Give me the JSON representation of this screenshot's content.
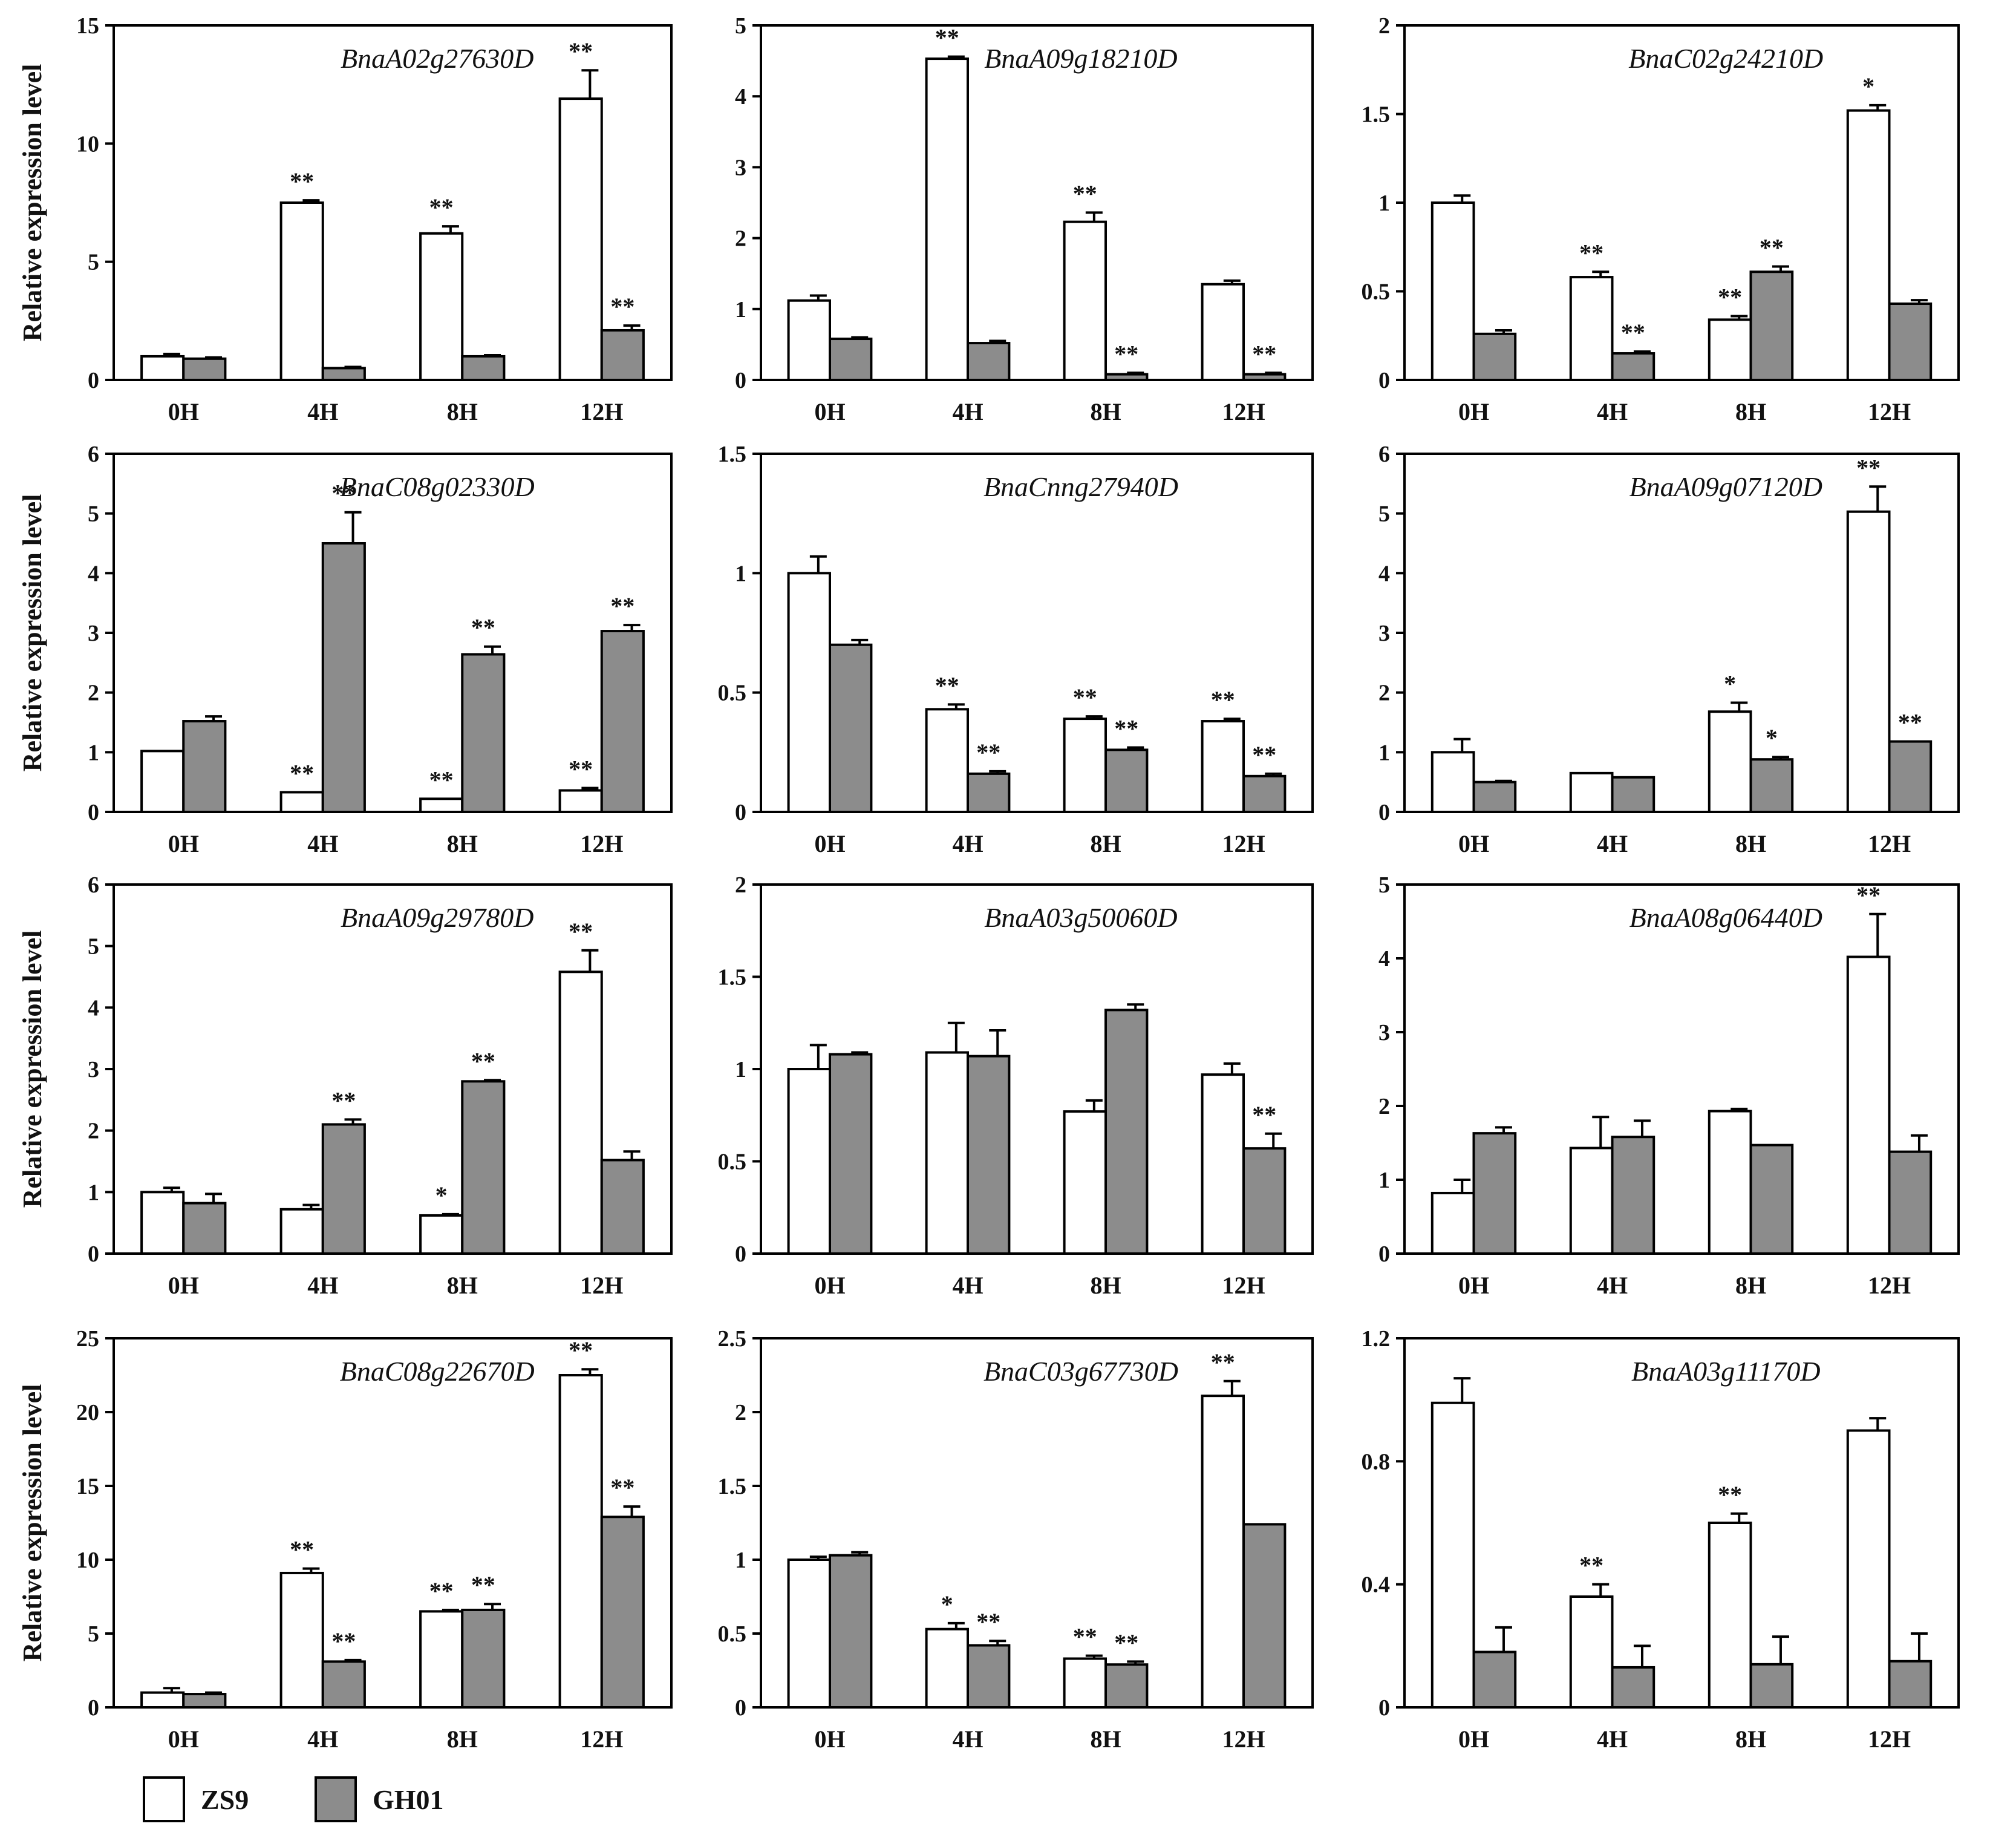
{
  "figure": {
    "ylabel": "Relative expression level",
    "legend": [
      {
        "name": "ZS9",
        "color": "#ffffff"
      },
      {
        "name": "GH01",
        "color": "#8c8c8c"
      }
    ]
  },
  "chart_data": [
    {
      "type": "bar",
      "title": "BnaA02g27630D",
      "ylabel": "Relative expression level",
      "categories": [
        "0H",
        "4H",
        "8H",
        "12H"
      ],
      "ylim": [
        0,
        15
      ],
      "yticks": [
        "0",
        "5",
        "10",
        "15"
      ],
      "series": [
        {
          "name": "ZS9",
          "values": [
            1.0,
            7.5,
            6.2,
            11.9
          ],
          "errors": [
            0.1,
            0.1,
            0.3,
            1.2
          ],
          "sig": [
            "",
            "**",
            "**",
            "**"
          ]
        },
        {
          "name": "GH01",
          "values": [
            0.9,
            0.5,
            1.0,
            2.1
          ],
          "errors": [
            0.05,
            0.05,
            0.05,
            0.2
          ],
          "sig": [
            "",
            "",
            "",
            "**"
          ]
        }
      ]
    },
    {
      "type": "bar",
      "title": "BnaA09g18210D",
      "ylabel": "",
      "categories": [
        "0H",
        "4H",
        "8H",
        "12H"
      ],
      "ylim": [
        0,
        5
      ],
      "yticks": [
        "0",
        "1",
        "2",
        "3",
        "4",
        "5"
      ],
      "series": [
        {
          "name": "ZS9",
          "values": [
            1.12,
            4.53,
            2.23,
            1.35
          ],
          "errors": [
            0.07,
            0.03,
            0.13,
            0.05
          ],
          "sig": [
            "",
            "**",
            "**",
            ""
          ]
        },
        {
          "name": "GH01",
          "values": [
            0.58,
            0.52,
            0.08,
            0.08
          ],
          "errors": [
            0.02,
            0.03,
            0.02,
            0.02
          ],
          "sig": [
            "",
            "",
            "**",
            "**"
          ]
        }
      ]
    },
    {
      "type": "bar",
      "title": "BnaC02g24210D",
      "ylabel": "",
      "categories": [
        "0H",
        "4H",
        "8H",
        "12H"
      ],
      "ylim": [
        0,
        2
      ],
      "yticks": [
        "0",
        "0.5",
        "1",
        "1.5",
        "2"
      ],
      "series": [
        {
          "name": "ZS9",
          "values": [
            1.0,
            0.58,
            0.34,
            1.52
          ],
          "errors": [
            0.04,
            0.03,
            0.02,
            0.03
          ],
          "sig": [
            "",
            "**",
            "**",
            "*"
          ]
        },
        {
          "name": "GH01",
          "values": [
            0.26,
            0.15,
            0.61,
            0.43
          ],
          "errors": [
            0.02,
            0.01,
            0.03,
            0.02
          ],
          "sig": [
            "",
            "**",
            "**",
            ""
          ]
        }
      ]
    },
    {
      "type": "bar",
      "title": "BnaC08g02330D",
      "ylabel": "Relative expression level",
      "categories": [
        "0H",
        "4H",
        "8H",
        "12H"
      ],
      "ylim": [
        0,
        6
      ],
      "yticks": [
        "0",
        "1",
        "2",
        "3",
        "4",
        "5",
        "6"
      ],
      "series": [
        {
          "name": "ZS9",
          "values": [
            1.02,
            0.33,
            0.22,
            0.36
          ],
          "errors": [
            0.0,
            0.0,
            0.0,
            0.04
          ],
          "sig": [
            "",
            "**",
            "**",
            "**"
          ]
        },
        {
          "name": "GH01",
          "values": [
            1.52,
            4.5,
            2.64,
            3.03
          ],
          "errors": [
            0.08,
            0.52,
            0.13,
            0.1
          ],
          "sig": [
            "",
            "**",
            "**",
            "**"
          ]
        }
      ]
    },
    {
      "type": "bar",
      "title": "BnaCnng27940D",
      "ylabel": "",
      "categories": [
        "0H",
        "4H",
        "8H",
        "12H"
      ],
      "ylim": [
        0,
        1.5
      ],
      "yticks": [
        "0",
        "0.5",
        "1",
        "1.5"
      ],
      "series": [
        {
          "name": "ZS9",
          "values": [
            1.0,
            0.43,
            0.39,
            0.38
          ],
          "errors": [
            0.07,
            0.02,
            0.01,
            0.01
          ],
          "sig": [
            "",
            "**",
            "**",
            "**"
          ]
        },
        {
          "name": "GH01",
          "values": [
            0.7,
            0.16,
            0.26,
            0.15
          ],
          "errors": [
            0.02,
            0.01,
            0.01,
            0.01
          ],
          "sig": [
            "",
            "**",
            "**",
            "**"
          ]
        }
      ]
    },
    {
      "type": "bar",
      "title": "BnaA09g07120D",
      "ylabel": "",
      "categories": [
        "0H",
        "4H",
        "8H",
        "12H"
      ],
      "ylim": [
        0,
        6
      ],
      "yticks": [
        "0",
        "1",
        "2",
        "3",
        "4",
        "5",
        "6"
      ],
      "series": [
        {
          "name": "ZS9",
          "values": [
            1.0,
            0.65,
            1.68,
            5.03
          ],
          "errors": [
            0.22,
            0.0,
            0.15,
            0.42
          ],
          "sig": [
            "",
            "",
            "*",
            "**"
          ]
        },
        {
          "name": "GH01",
          "values": [
            0.5,
            0.58,
            0.88,
            1.18
          ],
          "errors": [
            0.02,
            0.0,
            0.04,
            0.0
          ],
          "sig": [
            "",
            "",
            "*",
            "**"
          ]
        }
      ]
    },
    {
      "type": "bar",
      "title": "BnaA09g29780D",
      "ylabel": "Relative expression level",
      "categories": [
        "0H",
        "4H",
        "8H",
        "12H"
      ],
      "ylim": [
        0,
        6
      ],
      "yticks": [
        "0",
        "1",
        "2",
        "3",
        "4",
        "5",
        "6"
      ],
      "series": [
        {
          "name": "ZS9",
          "values": [
            1.0,
            0.72,
            0.62,
            4.58
          ],
          "errors": [
            0.07,
            0.07,
            0.02,
            0.35
          ],
          "sig": [
            "",
            "",
            "*",
            "**"
          ]
        },
        {
          "name": "GH01",
          "values": [
            0.82,
            2.1,
            2.8,
            1.52
          ],
          "errors": [
            0.15,
            0.08,
            0.02,
            0.14
          ],
          "sig": [
            "",
            "**",
            "**",
            ""
          ]
        }
      ]
    },
    {
      "type": "bar",
      "title": "BnaA03g50060D",
      "ylabel": "",
      "categories": [
        "0H",
        "4H",
        "8H",
        "12H"
      ],
      "ylim": [
        0,
        2
      ],
      "yticks": [
        "0",
        "0.5",
        "1",
        "1.5",
        "2"
      ],
      "series": [
        {
          "name": "ZS9",
          "values": [
            1.0,
            1.09,
            0.77,
            0.97
          ],
          "errors": [
            0.13,
            0.16,
            0.06,
            0.06
          ],
          "sig": [
            "",
            "",
            "",
            ""
          ]
        },
        {
          "name": "GH01",
          "values": [
            1.08,
            1.07,
            1.32,
            0.57
          ],
          "errors": [
            0.01,
            0.14,
            0.03,
            0.08
          ],
          "sig": [
            "",
            "",
            "",
            "**"
          ]
        }
      ]
    },
    {
      "type": "bar",
      "title": "BnaA08g06440D",
      "ylabel": "",
      "categories": [
        "0H",
        "4H",
        "8H",
        "12H"
      ],
      "ylim": [
        0,
        5
      ],
      "yticks": [
        "0",
        "1",
        "2",
        "3",
        "4",
        "5"
      ],
      "series": [
        {
          "name": "ZS9",
          "values": [
            0.82,
            1.43,
            1.93,
            4.02
          ],
          "errors": [
            0.18,
            0.42,
            0.03,
            0.58
          ],
          "sig": [
            "",
            "",
            "",
            "**"
          ]
        },
        {
          "name": "GH01",
          "values": [
            1.63,
            1.58,
            1.47,
            1.38
          ],
          "errors": [
            0.08,
            0.22,
            0.0,
            0.22
          ],
          "sig": [
            "",
            "",
            "",
            ""
          ]
        }
      ]
    },
    {
      "type": "bar",
      "title": "BnaC08g22670D",
      "ylabel": "Relative expression level",
      "categories": [
        "0H",
        "4H",
        "8H",
        "12H"
      ],
      "ylim": [
        0,
        25
      ],
      "yticks": [
        "0",
        "5",
        "10",
        "15",
        "20",
        "25"
      ],
      "series": [
        {
          "name": "ZS9",
          "values": [
            1.0,
            9.1,
            6.5,
            22.5
          ],
          "errors": [
            0.3,
            0.3,
            0.1,
            0.4
          ],
          "sig": [
            "",
            "**",
            "**",
            "**"
          ]
        },
        {
          "name": "GH01",
          "values": [
            0.9,
            3.1,
            6.6,
            12.9
          ],
          "errors": [
            0.1,
            0.1,
            0.4,
            0.7
          ],
          "sig": [
            "",
            "**",
            "**",
            "**"
          ]
        }
      ]
    },
    {
      "type": "bar",
      "title": "BnaC03g67730D",
      "ylabel": "",
      "categories": [
        "0H",
        "4H",
        "8H",
        "12H"
      ],
      "ylim": [
        0,
        2.5
      ],
      "yticks": [
        "0",
        "0.5",
        "1",
        "1.5",
        "2",
        "2.5"
      ],
      "series": [
        {
          "name": "ZS9",
          "values": [
            1.0,
            0.53,
            0.33,
            2.11
          ],
          "errors": [
            0.02,
            0.04,
            0.02,
            0.1
          ],
          "sig": [
            "",
            "*",
            "**",
            "**"
          ]
        },
        {
          "name": "GH01",
          "values": [
            1.03,
            0.42,
            0.29,
            1.24
          ],
          "errors": [
            0.02,
            0.03,
            0.02,
            0.0
          ],
          "sig": [
            "",
            "**",
            "**",
            ""
          ]
        }
      ]
    },
    {
      "type": "bar",
      "title": "BnaA03g11170D",
      "ylabel": "",
      "categories": [
        "0H",
        "4H",
        "8H",
        "12H"
      ],
      "ylim": [
        0,
        1.2
      ],
      "yticks": [
        "0",
        "0.4",
        "0.8",
        "1.2"
      ],
      "series": [
        {
          "name": "ZS9",
          "values": [
            0.99,
            0.36,
            0.6,
            0.9
          ],
          "errors": [
            0.08,
            0.04,
            0.03,
            0.04
          ],
          "sig": [
            "",
            "**",
            "**",
            ""
          ]
        },
        {
          "name": "GH01",
          "values": [
            0.18,
            0.13,
            0.14,
            0.15
          ],
          "errors": [
            0.08,
            0.07,
            0.09,
            0.09
          ],
          "sig": [
            "",
            "",
            "",
            ""
          ]
        }
      ]
    }
  ]
}
